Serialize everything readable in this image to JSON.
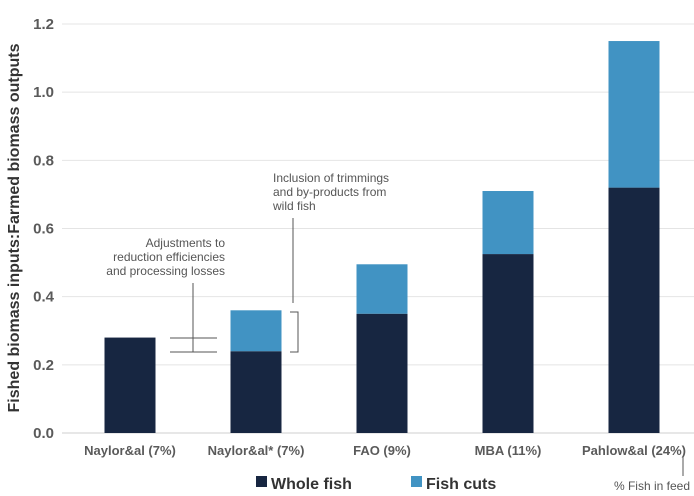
{
  "chart_data": {
    "type": "bar",
    "stacked": true,
    "categories": [
      "Naylor&al (7%)",
      "Naylor&al* (7%)",
      "FAO (9%)",
      "MBA (11%)",
      "Pahlow&al (24%)"
    ],
    "series": [
      {
        "name": "Whole fish",
        "color": "#172641",
        "values": [
          0.28,
          0.24,
          0.35,
          0.525,
          0.72
        ]
      },
      {
        "name": "Fish cuts",
        "color": "#4193c3",
        "values": [
          0,
          0.12,
          0.145,
          0.185,
          0.43
        ]
      }
    ],
    "ylabel": "Fished biomass inputs:Farmed biomass outputs",
    "xlabel": "",
    "ylim": [
      0,
      1.2
    ],
    "yticks": [
      "0.0",
      "0.2",
      "0.4",
      "0.6",
      "0.8",
      "1.0",
      "1.2"
    ],
    "grid": true,
    "legend": "bottom",
    "annotations": {
      "adjustments": [
        "Adjustments to",
        "reduction efficiencies",
        "and processing losses"
      ],
      "inclusion": [
        "Inclusion of trimmings",
        "and by-products from",
        "wild fish"
      ],
      "fish_in_feed": "% Fish in feed"
    }
  }
}
